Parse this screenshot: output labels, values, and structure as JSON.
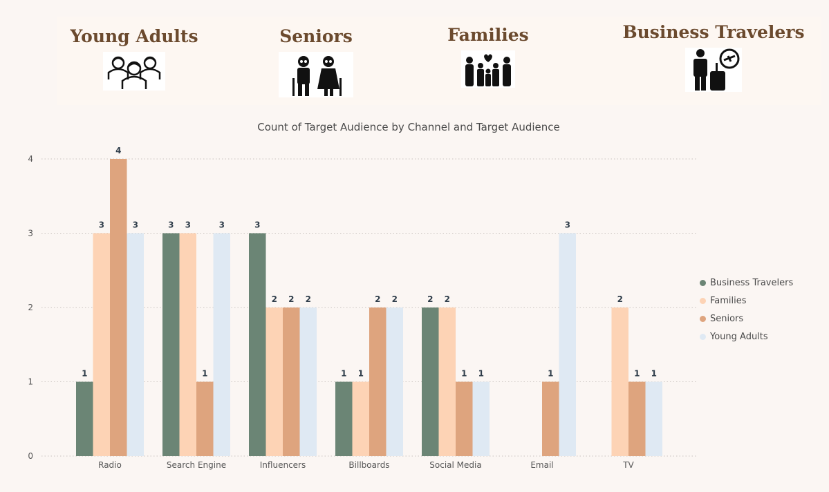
{
  "audiences": [
    {
      "title": "Young Adults",
      "icon": "group-of-people-icon"
    },
    {
      "title": "Seniors",
      "icon": "elderly-couple-icon"
    },
    {
      "title": "Families",
      "icon": "family-icon"
    },
    {
      "title": "Business Travelers",
      "icon": "business-traveler-icon"
    }
  ],
  "chart_data": {
    "type": "bar",
    "title": "Count of Target Audience by Channel and Target Audience",
    "xlabel": "",
    "ylabel": "",
    "ylim": [
      0,
      4
    ],
    "yticks": [
      0,
      1,
      2,
      3,
      4
    ],
    "grid": true,
    "legend_position": "right",
    "categories": [
      "Radio",
      "Search Engine",
      "Influencers",
      "Billboards",
      "Social Media",
      "Email",
      "TV"
    ],
    "series": [
      {
        "name": "Business Travelers",
        "color": "#6b8575",
        "values": [
          1,
          3,
          3,
          1,
          2,
          null,
          null
        ]
      },
      {
        "name": "Families",
        "color": "#fdd3b5",
        "values": [
          3,
          3,
          2,
          1,
          2,
          null,
          2
        ]
      },
      {
        "name": "Seniors",
        "color": "#dea47e",
        "values": [
          4,
          1,
          2,
          2,
          1,
          1,
          1
        ]
      },
      {
        "name": "Young Adults",
        "color": "#dfe9f3",
        "values": [
          3,
          3,
          2,
          2,
          1,
          3,
          1
        ]
      }
    ]
  }
}
